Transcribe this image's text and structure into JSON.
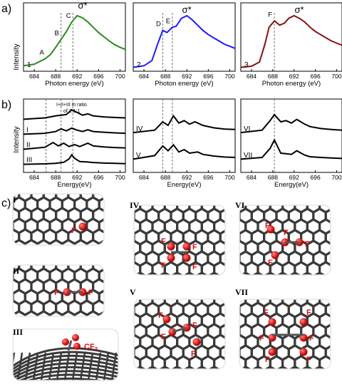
{
  "panel_labels": {
    "a": "a)",
    "b": "b)",
    "c": "c)"
  },
  "common": {
    "sigma_star": "σ*",
    "x_label_top": "Photon energy (eV)",
    "x_label_bottom": "Energy(eV)",
    "y_label": "Intensity",
    "x_ticks": [
      "684",
      "688",
      "692",
      "696",
      "700"
    ]
  },
  "top_spectra": [
    {
      "color": "#2a8a1e",
      "number": "1",
      "markers": [
        {
          "label": "A",
          "x": 686.2
        },
        {
          "label": "B",
          "x": 689.0
        },
        {
          "label": "C",
          "x": 691.2
        }
      ],
      "dashed_x": [
        689.0,
        691.2
      ]
    },
    {
      "color": "#1a1aff",
      "number": "2",
      "markers": [
        {
          "label": "D",
          "x": 687.5
        },
        {
          "label": "E",
          "x": 689.3
        }
      ],
      "dashed_x": [
        687.5,
        689.3
      ]
    },
    {
      "color": "#8b1010",
      "number": "3",
      "markers": [
        {
          "label": "F",
          "x": 688.3
        }
      ],
      "dashed_x": [
        688.3
      ]
    }
  ],
  "bottom_annotation": "I+II+III in ratio\nof 2:1:1",
  "bottom_spectra_labels": [
    [
      "I",
      "II",
      "III"
    ],
    [
      "IV",
      "V"
    ],
    [
      "VI",
      "VII"
    ]
  ],
  "structures": {
    "I": {
      "label": "I",
      "atoms": [
        "F"
      ]
    },
    "II": {
      "label": "II",
      "atoms": [
        "F",
        "F"
      ]
    },
    "III": {
      "label": "III",
      "group": "CF3"
    },
    "IV": {
      "label": "IV",
      "atoms": [
        "F",
        "F",
        "F",
        "F"
      ]
    },
    "V": {
      "label": "V",
      "atoms": [
        "F",
        "F",
        "F",
        "F"
      ]
    },
    "VI": {
      "label": "VI",
      "atoms": [
        "F",
        "F",
        "F",
        "F"
      ]
    },
    "VII": {
      "label": "VII",
      "atoms": [
        "F",
        "F",
        "F",
        "F",
        "F",
        "F"
      ]
    }
  },
  "chart_data": [
    {
      "type": "line",
      "title": "",
      "xlabel": "Photon energy (eV)",
      "ylabel": "Intensity",
      "xlim": [
        682,
        701
      ],
      "series": [
        {
          "name": "1",
          "x": [
            682,
            684,
            686,
            687,
            688,
            689,
            690,
            691,
            692,
            693,
            694,
            695,
            696,
            697,
            698,
            699,
            700,
            701
          ],
          "y": [
            0.05,
            0.08,
            0.18,
            0.26,
            0.4,
            0.55,
            0.7,
            0.88,
            1.0,
            0.96,
            0.88,
            0.78,
            0.68,
            0.6,
            0.52,
            0.45,
            0.4,
            0.36
          ]
        }
      ]
    },
    {
      "type": "line",
      "title": "",
      "xlabel": "Photon energy (eV)",
      "ylabel": "",
      "xlim": [
        682,
        701
      ],
      "series": [
        {
          "name": "2",
          "x": [
            682,
            684,
            685.5,
            686.5,
            687.5,
            688.3,
            689.3,
            690,
            691,
            692,
            693,
            694,
            695,
            696,
            697,
            698,
            699,
            700,
            701
          ],
          "y": [
            0.02,
            0.05,
            0.15,
            0.45,
            0.72,
            0.68,
            0.78,
            0.8,
            0.95,
            1.0,
            0.92,
            0.82,
            0.72,
            0.64,
            0.58,
            0.52,
            0.46,
            0.42,
            0.38
          ]
        }
      ]
    },
    {
      "type": "line",
      "title": "",
      "xlabel": "Photon energy (eV)",
      "ylabel": "",
      "xlim": [
        682,
        701
      ],
      "series": [
        {
          "name": "3",
          "x": [
            682,
            684,
            685.5,
            686.5,
            687.3,
            688.3,
            689.3,
            690.2,
            691,
            692,
            693,
            694,
            695,
            696,
            697,
            698,
            699,
            700,
            701
          ],
          "y": [
            0.02,
            0.04,
            0.12,
            0.45,
            0.78,
            0.9,
            0.82,
            0.86,
            0.95,
            1.0,
            0.95,
            0.88,
            0.78,
            0.7,
            0.64,
            0.58,
            0.52,
            0.48,
            0.44
          ]
        }
      ]
    },
    {
      "type": "line",
      "title": "",
      "xlabel": "Energy(eV)",
      "ylabel": "Intensity",
      "xlim": [
        682,
        701
      ],
      "series": [
        {
          "name": "I+II+III",
          "x": [
            682,
            686,
            688,
            689,
            690,
            691,
            692,
            693,
            694,
            695,
            697,
            699,
            701
          ],
          "y": [
            0.05,
            0.15,
            0.3,
            0.35,
            0.4,
            0.75,
            0.55,
            0.35,
            0.45,
            0.3,
            0.22,
            0.18,
            0.15
          ]
        },
        {
          "name": "I",
          "x": [
            682,
            686,
            688,
            689,
            690,
            691,
            692,
            693,
            694,
            695,
            697,
            699,
            701
          ],
          "y": [
            0.05,
            0.12,
            0.25,
            0.45,
            0.3,
            0.5,
            0.35,
            0.25,
            0.38,
            0.25,
            0.2,
            0.15,
            0.12
          ]
        },
        {
          "name": "II",
          "x": [
            682,
            686,
            687.5,
            688.5,
            689.5,
            690.5,
            691.5,
            692.5,
            694,
            695,
            697,
            699,
            701
          ],
          "y": [
            0.05,
            0.2,
            0.55,
            0.3,
            0.5,
            0.25,
            0.4,
            0.25,
            0.5,
            0.3,
            0.22,
            0.18,
            0.15
          ]
        },
        {
          "name": "III",
          "x": [
            682,
            686,
            688,
            689.5,
            690.5,
            691,
            691.5,
            692.5,
            694,
            695,
            697,
            699,
            701
          ],
          "y": [
            0.05,
            0.08,
            0.12,
            0.2,
            0.45,
            0.75,
            0.5,
            0.25,
            0.22,
            0.18,
            0.14,
            0.12,
            0.1
          ]
        }
      ]
    },
    {
      "type": "line",
      "title": "",
      "xlabel": "Energy(eV)",
      "ylabel": "",
      "xlim": [
        682,
        701
      ],
      "series": [
        {
          "name": "IV",
          "x": [
            682,
            686,
            687.5,
            688.5,
            689.5,
            690.5,
            691.5,
            692.5,
            693.5,
            695,
            697,
            699,
            701
          ],
          "y": [
            0.05,
            0.15,
            0.5,
            0.35,
            0.75,
            0.45,
            0.55,
            0.4,
            0.5,
            0.35,
            0.25,
            0.2,
            0.18
          ]
        },
        {
          "name": "V",
          "x": [
            682,
            686,
            687.5,
            688.5,
            689.5,
            690.5,
            691.5,
            692.5,
            694,
            695,
            697,
            699,
            701
          ],
          "y": [
            0.05,
            0.2,
            0.6,
            0.4,
            0.65,
            0.35,
            0.45,
            0.3,
            0.35,
            0.25,
            0.18,
            0.14,
            0.12
          ]
        }
      ]
    },
    {
      "type": "line",
      "title": "",
      "xlabel": "Energy(eV)",
      "ylabel": "",
      "xlim": [
        682,
        701
      ],
      "series": [
        {
          "name": "VI",
          "x": [
            682,
            686,
            687.5,
            688.3,
            689.5,
            690.5,
            691.5,
            692.5,
            694,
            695,
            697,
            699,
            701
          ],
          "y": [
            0.05,
            0.15,
            0.55,
            0.8,
            0.5,
            0.55,
            0.45,
            0.6,
            0.4,
            0.3,
            0.22,
            0.18,
            0.15
          ]
        },
        {
          "name": "VII",
          "x": [
            682,
            686,
            687.5,
            688.3,
            689.5,
            690.5,
            691.5,
            692.5,
            694,
            695,
            697,
            699,
            701
          ],
          "y": [
            0.05,
            0.12,
            0.5,
            0.85,
            0.3,
            0.28,
            0.25,
            0.4,
            0.22,
            0.15,
            0.12,
            0.1,
            0.08
          ]
        }
      ]
    }
  ]
}
